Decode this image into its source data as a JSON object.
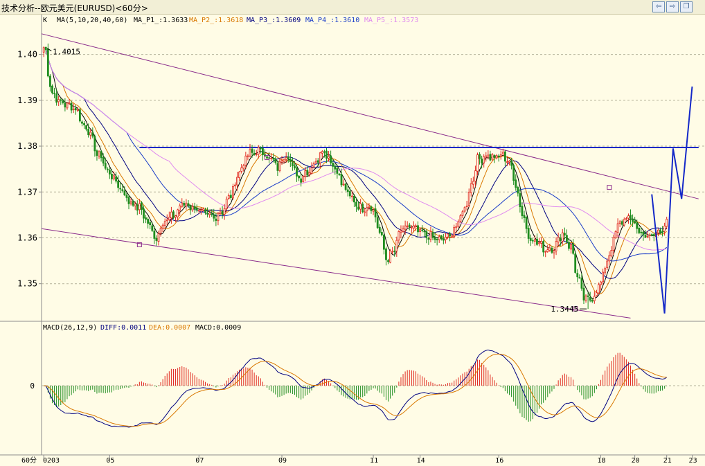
{
  "window": {
    "title": "技术分析--欧元美元(EURUSD)<60分>",
    "buttons": [
      {
        "name": "prev-button",
        "glyph": "⇦"
      },
      {
        "name": "next-button",
        "glyph": "⇨"
      },
      {
        "name": "restore-button",
        "glyph": "❐"
      }
    ]
  },
  "ma_legend": {
    "k_label": "K",
    "ma_label": "MA(5,10,20,40,60)",
    "items": [
      {
        "label": "MA_P1_:1.3633",
        "color": "#000000"
      },
      {
        "label": "MA_P2_:1.3618",
        "color": "#d97800"
      },
      {
        "label": "MA_P3_:1.3609",
        "color": "#000080"
      },
      {
        "label": "MA_P4_:1.3610",
        "color": "#1a3cc8"
      },
      {
        "label": "MA_P5_:1.3573",
        "color": "#e08aef"
      }
    ]
  },
  "macd_legend": {
    "label": "MACD(26,12,9)",
    "items": [
      {
        "label": "DIFF:0.0011",
        "color": "#000080"
      },
      {
        "label": "DEA:0.0007",
        "color": "#d97800"
      },
      {
        "label": "MACD:0.0009",
        "color": "#000000"
      }
    ]
  },
  "annotations": {
    "high_label": "1.4015",
    "low_label": "1.3445",
    "macd_zero_label": "0"
  },
  "x_axis": {
    "period_label": "60分",
    "ticks": [
      "0203",
      "05",
      "07",
      "09",
      "11",
      "14",
      "16",
      "18",
      "20",
      "21",
      "23"
    ]
  },
  "chart_data": {
    "type": "candlestick",
    "symbol": "EURUSD",
    "interval": "60分",
    "y_ticks": [
      1.35,
      1.36,
      1.37,
      1.38,
      1.39,
      1.4
    ],
    "ylim": [
      1.3418,
      1.4087
    ],
    "bar_count": 294,
    "anchors": [
      [
        0,
        1.4015
      ],
      [
        2,
        1.396
      ],
      [
        4,
        1.3915
      ],
      [
        8,
        1.3895
      ],
      [
        14,
        1.3885
      ],
      [
        20,
        1.384
      ],
      [
        26,
        1.378
      ],
      [
        31,
        1.374
      ],
      [
        36,
        1.371
      ],
      [
        40,
        1.368
      ],
      [
        45,
        1.3665
      ],
      [
        50,
        1.3625
      ],
      [
        53,
        1.3595
      ],
      [
        55,
        1.363
      ],
      [
        60,
        1.3645
      ],
      [
        66,
        1.3675
      ],
      [
        71,
        1.3665
      ],
      [
        76,
        1.365
      ],
      [
        80,
        1.3645
      ],
      [
        84,
        1.366
      ],
      [
        88,
        1.3695
      ],
      [
        92,
        1.3745
      ],
      [
        96,
        1.378
      ],
      [
        98,
        1.3785
      ],
      [
        102,
        1.379
      ],
      [
        106,
        1.3775
      ],
      [
        110,
        1.3755
      ],
      [
        114,
        1.3785
      ],
      [
        117,
        1.3755
      ],
      [
        120,
        1.373
      ],
      [
        124,
        1.3745
      ],
      [
        128,
        1.3765
      ],
      [
        131,
        1.3795
      ],
      [
        134,
        1.3775
      ],
      [
        138,
        1.3745
      ],
      [
        141,
        1.371
      ],
      [
        145,
        1.3685
      ],
      [
        149,
        1.3665
      ],
      [
        154,
        1.367
      ],
      [
        158,
        1.3615
      ],
      [
        161,
        1.3555
      ],
      [
        164,
        1.3565
      ],
      [
        168,
        1.3615
      ],
      [
        172,
        1.3625
      ],
      [
        176,
        1.3615
      ],
      [
        180,
        1.3605
      ],
      [
        186,
        1.3595
      ],
      [
        190,
        1.36
      ],
      [
        194,
        1.3625
      ],
      [
        198,
        1.3665
      ],
      [
        201,
        1.3715
      ],
      [
        204,
        1.377
      ],
      [
        208,
        1.378
      ],
      [
        212,
        1.3775
      ],
      [
        216,
        1.378
      ],
      [
        219,
        1.3765
      ],
      [
        222,
        1.3715
      ],
      [
        225,
        1.3655
      ],
      [
        228,
        1.3605
      ],
      [
        232,
        1.359
      ],
      [
        236,
        1.3575
      ],
      [
        240,
        1.358
      ],
      [
        244,
        1.361
      ],
      [
        248,
        1.358
      ],
      [
        251,
        1.3515
      ],
      [
        254,
        1.347
      ],
      [
        256,
        1.3463
      ],
      [
        259,
        1.3475
      ],
      [
        262,
        1.3505
      ],
      [
        266,
        1.3565
      ],
      [
        270,
        1.3625
      ],
      [
        274,
        1.3645
      ],
      [
        277,
        1.3635
      ],
      [
        281,
        1.361
      ],
      [
        285,
        1.36
      ],
      [
        289,
        1.3615
      ],
      [
        293,
        1.363
      ]
    ],
    "ma_periods": [
      5,
      10,
      20,
      40,
      60
    ],
    "ma_colors": [
      "#000000",
      "#d97800",
      "#000080",
      "#1a3cc8",
      "#e08aef"
    ],
    "ma_last_values": [
      1.3633,
      1.3618,
      1.3609,
      1.361,
      1.3573
    ],
    "high_point": {
      "bar": 1,
      "price": 1.4015
    },
    "low_point": {
      "bar": 256,
      "price": 1.3445
    },
    "upper_channel": [
      [
        -1,
        1.4045
      ],
      [
        308,
        1.3685
      ]
    ],
    "lower_channel": [
      [
        -1,
        1.362
      ],
      [
        276,
        1.3425
      ]
    ],
    "resistance_line": [
      [
        45,
        1.3797
      ],
      [
        201,
        1.3797
      ],
      [
        308,
        1.3797
      ]
    ],
    "forecast_path": [
      [
        286,
        1.3695
      ],
      [
        292,
        1.3435
      ],
      [
        296,
        1.3795
      ],
      [
        300,
        1.3685
      ],
      [
        305,
        1.393
      ]
    ],
    "markers": [
      [
        45,
        1.3585
      ],
      [
        266,
        1.371
      ],
      [
        250,
        1.3445
      ],
      [
        105,
        1.3775
      ]
    ],
    "macd": {
      "fast": 26,
      "slow": 12,
      "signal": 9,
      "diff": 0.0011,
      "dea": 0.0007,
      "macd": 0.0009
    }
  }
}
